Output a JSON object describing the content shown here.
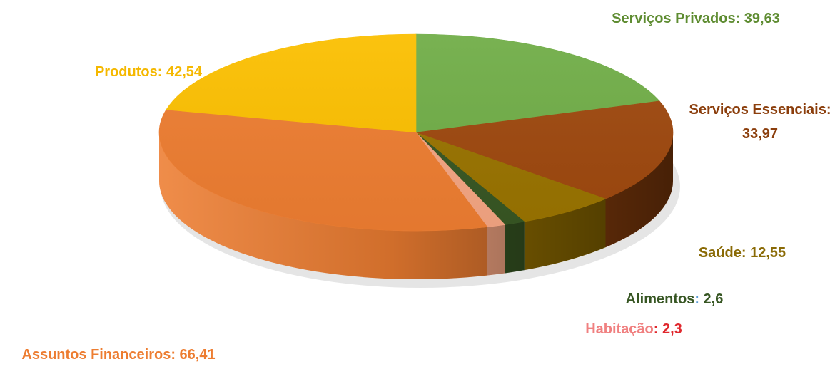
{
  "chart_data": {
    "type": "pie",
    "style": "3d-pie",
    "title": "",
    "start_angle_deg": -90,
    "direction": "clockwise",
    "separator": ": ",
    "series": [
      {
        "name": "",
        "slices": [
          {
            "label": "Serviços Privados",
            "value_text": "39,63",
            "value": 39.63,
            "color": "#70AD47",
            "label_color": "#5E8C31"
          },
          {
            "label": "Serviços Essenciais",
            "value_text": "33,97",
            "value": 33.97,
            "color": "#9E480E",
            "label_color": "#8B3E0C"
          },
          {
            "label": "Saúde",
            "value_text": "12,55",
            "value": 12.55,
            "color": "#997300",
            "label_color": "#8A6A05"
          },
          {
            "label": "Alimentos",
            "value_text": "2,6",
            "value": 2.6,
            "color": "#375623",
            "label_color": "#375623",
            "separator_color": "#5B9BD5"
          },
          {
            "label": "Habitação",
            "value_text": "2,3",
            "value": 2.3,
            "color": "#F4A582",
            "label_color": "#F08080",
            "value_color": "#E0282E"
          },
          {
            "label": "Assuntos Financeiros",
            "value_text": "66,41",
            "value": 66.41,
            "color": "#ED7D31",
            "label_color": "#ED7D31"
          },
          {
            "label": "Produtos",
            "value_text": "42,54",
            "value": 42.54,
            "color": "#FBBF00",
            "label_color": "#F5B800"
          }
        ]
      }
    ],
    "legend": "none",
    "grid": false
  }
}
